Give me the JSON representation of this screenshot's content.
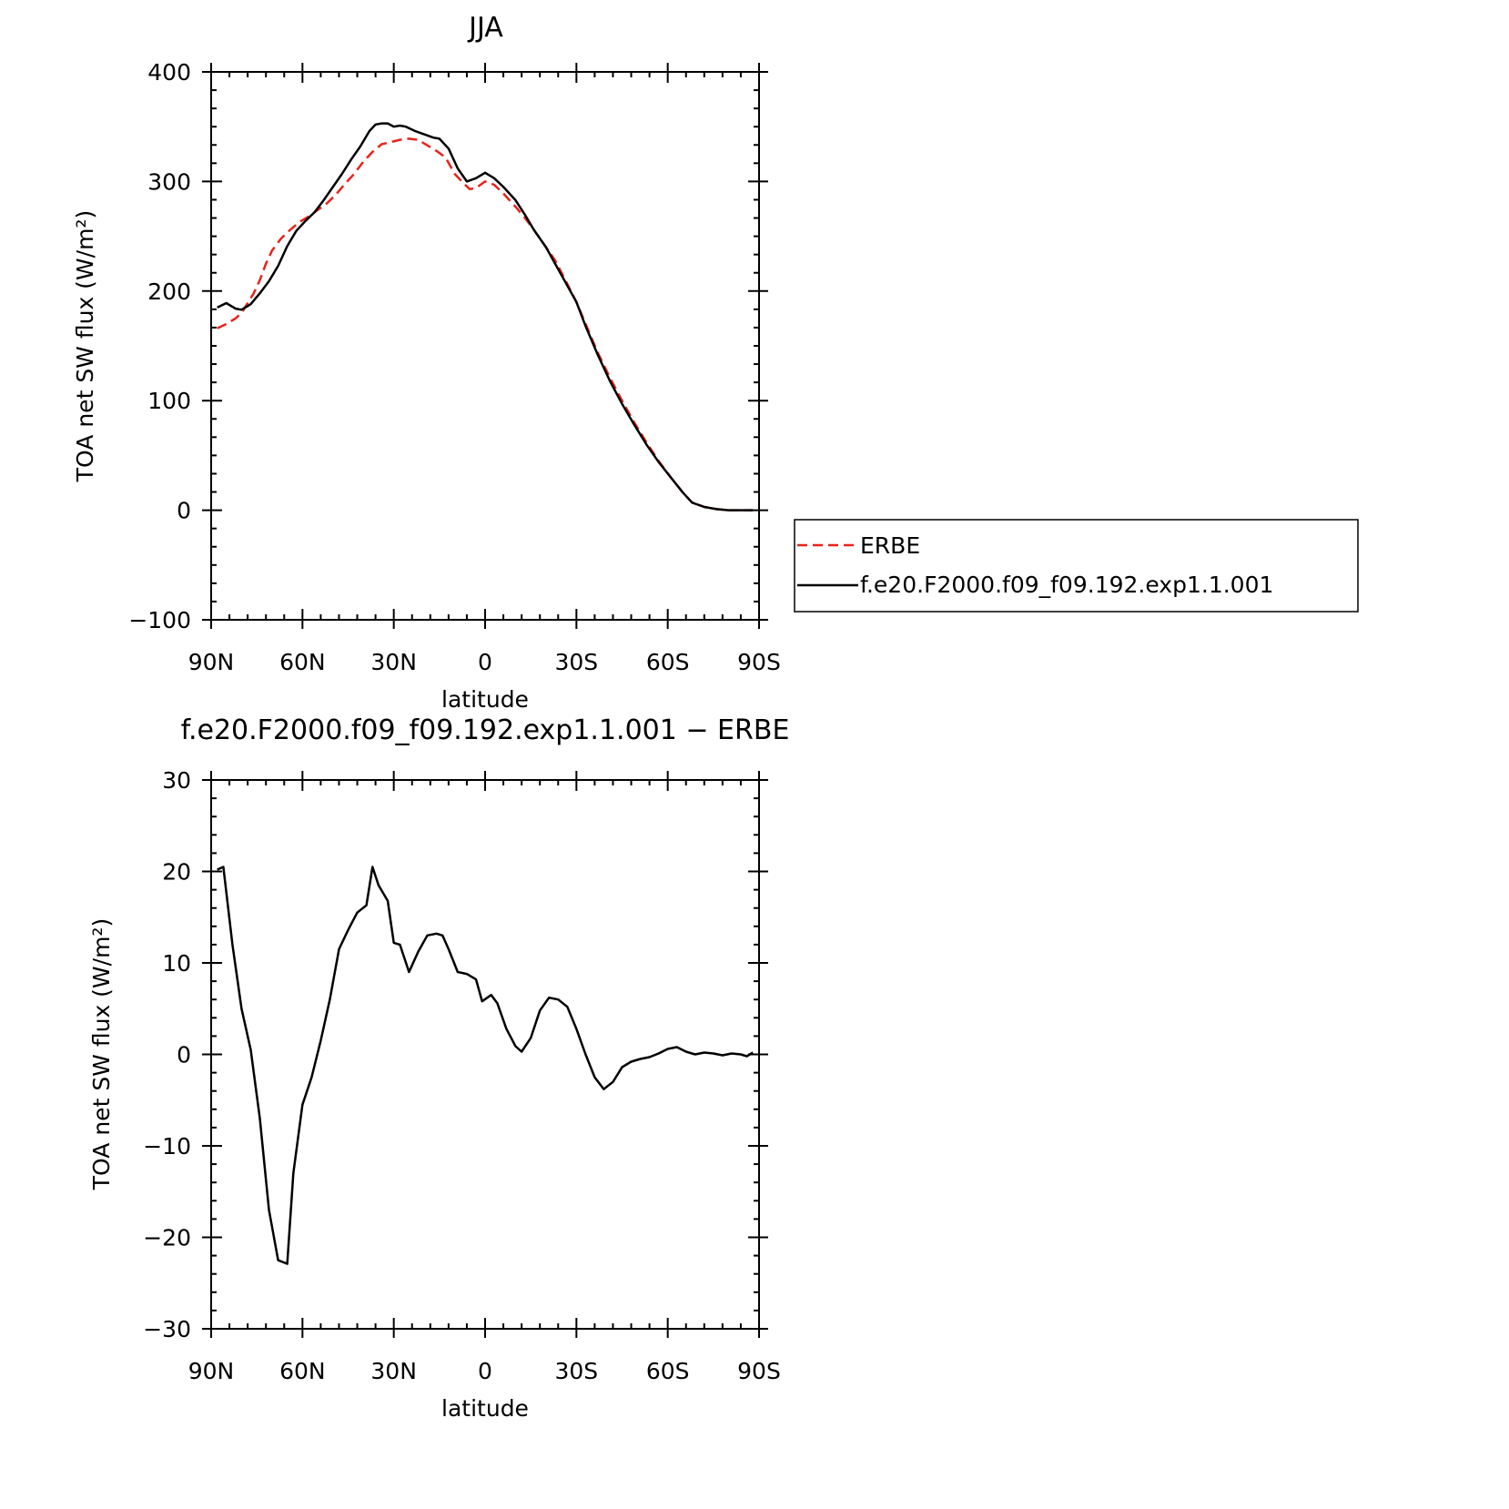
{
  "chart_data": [
    {
      "type": "line",
      "title": "JJA",
      "xlabel": "latitude",
      "ylabel": "TOA net SW flux (W/m²)",
      "xlim": [
        90,
        -90
      ],
      "ylim": [
        -100,
        400
      ],
      "xticks": [
        90,
        60,
        30,
        0,
        -30,
        -60,
        -90
      ],
      "xtick_labels": [
        "90N",
        "60N",
        "30N",
        "0",
        "30S",
        "60S",
        "90S"
      ],
      "yticks": [
        -100,
        0,
        100,
        200,
        300,
        400
      ],
      "ytick_labels": [
        "−100",
        "0",
        "100",
        "200",
        "300",
        "400"
      ],
      "grid": false,
      "legend_position": "right",
      "series": [
        {
          "name": "ERBE",
          "color": "#e8221c",
          "dash": "dashed",
          "points": [
            [
              88,
              166
            ],
            [
              85,
              170
            ],
            [
              82,
              175
            ],
            [
              80,
              180
            ],
            [
              76,
              198
            ],
            [
              74,
              210
            ],
            [
              72,
              225
            ],
            [
              70,
              237
            ],
            [
              67,
              248
            ],
            [
              64,
              256
            ],
            [
              61,
              263
            ],
            [
              58,
              268
            ],
            [
              55,
              274
            ],
            [
              52,
              280
            ],
            [
              49,
              288
            ],
            [
              46,
              298
            ],
            [
              43,
              307
            ],
            [
              40,
              318
            ],
            [
              37,
              327
            ],
            [
              34,
              334
            ],
            [
              31,
              336
            ],
            [
              28,
              338
            ],
            [
              25,
              339
            ],
            [
              22,
              338
            ],
            [
              19,
              333
            ],
            [
              16,
              328
            ],
            [
              13,
              322
            ],
            [
              10,
              307
            ],
            [
              7,
              298
            ],
            [
              5,
              293
            ],
            [
              3,
              294
            ],
            [
              0,
              300
            ],
            [
              -3,
              297
            ],
            [
              -6,
              289
            ],
            [
              -10,
              277
            ],
            [
              -13,
              267
            ],
            [
              -16,
              256
            ],
            [
              -20,
              240
            ],
            [
              -23,
              228
            ],
            [
              -26,
              212
            ],
            [
              -30,
              190
            ],
            [
              -33,
              170
            ],
            [
              -37,
              144
            ],
            [
              -41,
              121
            ],
            [
              -45,
              100
            ],
            [
              -49,
              80
            ],
            [
              -53,
              62
            ],
            [
              -57,
              45
            ],
            [
              -61,
              30
            ],
            [
              -65,
              16
            ],
            [
              -68,
              7
            ],
            [
              -72,
              3
            ],
            [
              -76,
              1
            ],
            [
              -80,
              0
            ],
            [
              -84,
              0
            ],
            [
              -88,
              0
            ]
          ]
        },
        {
          "name": "f.e20.F2000.f09_f09.192.exp1.1.001",
          "color": "#000000",
          "dash": "solid",
          "points": [
            [
              88,
              185
            ],
            [
              85,
              189
            ],
            [
              82,
              184
            ],
            [
              80,
              183
            ],
            [
              77,
              188
            ],
            [
              74,
              198
            ],
            [
              71,
              209
            ],
            [
              68,
              223
            ],
            [
              65,
              241
            ],
            [
              62,
              255
            ],
            [
              59,
              264
            ],
            [
              56,
              272
            ],
            [
              53,
              283
            ],
            [
              50,
              295
            ],
            [
              47,
              307
            ],
            [
              44,
              320
            ],
            [
              41,
              332
            ],
            [
              38,
              346
            ],
            [
              36,
              352
            ],
            [
              34,
              353
            ],
            [
              32,
              353
            ],
            [
              30,
              350
            ],
            [
              28,
              351
            ],
            [
              26,
              350
            ],
            [
              23,
              346
            ],
            [
              20,
              343
            ],
            [
              17,
              340
            ],
            [
              15,
              339
            ],
            [
              12,
              330
            ],
            [
              9,
              312
            ],
            [
              6,
              300
            ],
            [
              3,
              303
            ],
            [
              0,
              308
            ],
            [
              -3,
              303
            ],
            [
              -6,
              295
            ],
            [
              -10,
              283
            ],
            [
              -13,
              270
            ],
            [
              -16,
              256
            ],
            [
              -20,
              240
            ],
            [
              -23,
              225
            ],
            [
              -26,
              210
            ],
            [
              -30,
              190
            ],
            [
              -33,
              168
            ],
            [
              -37,
              142
            ],
            [
              -41,
              118
            ],
            [
              -45,
              97
            ],
            [
              -49,
              78
            ],
            [
              -53,
              60
            ],
            [
              -57,
              44
            ],
            [
              -61,
              30
            ],
            [
              -65,
              16
            ],
            [
              -68,
              7
            ],
            [
              -72,
              3
            ],
            [
              -76,
              1
            ],
            [
              -80,
              0
            ],
            [
              -84,
              0
            ],
            [
              -88,
              0
            ]
          ]
        }
      ]
    },
    {
      "type": "line",
      "title": "f.e20.F2000.f09_f09.192.exp1.1.001 − ERBE",
      "xlabel": "latitude",
      "ylabel": "TOA net SW flux (W/m²)",
      "xlim": [
        90,
        -90
      ],
      "ylim": [
        -30,
        30
      ],
      "xticks": [
        90,
        60,
        30,
        0,
        -30,
        -60,
        -90
      ],
      "xtick_labels": [
        "90N",
        "60N",
        "30N",
        "0",
        "30S",
        "60S",
        "90S"
      ],
      "yticks": [
        -30,
        -20,
        -10,
        0,
        10,
        20,
        30
      ],
      "ytick_labels": [
        "−30",
        "−20",
        "−10",
        "0",
        "10",
        "20",
        "30"
      ],
      "grid": false,
      "series": [
        {
          "color": "#000000",
          "dash": "solid",
          "points": [
            [
              88,
              20.2
            ],
            [
              86,
              20.5
            ],
            [
              83,
              12
            ],
            [
              80,
              5
            ],
            [
              77,
              0.5
            ],
            [
              74,
              -7
            ],
            [
              71,
              -17
            ],
            [
              68,
              -22.5
            ],
            [
              65,
              -22.9
            ],
            [
              63,
              -13
            ],
            [
              60,
              -5.5
            ],
            [
              57,
              -2.5
            ],
            [
              54,
              1.5
            ],
            [
              51,
              6
            ],
            [
              48,
              11.5
            ],
            [
              45,
              13.6
            ],
            [
              42,
              15.5
            ],
            [
              39,
              16.3
            ],
            [
              37,
              20.5
            ],
            [
              35,
              18.5
            ],
            [
              32,
              16.8
            ],
            [
              30,
              12.2
            ],
            [
              28,
              12
            ],
            [
              25,
              9
            ],
            [
              22,
              11.2
            ],
            [
              19,
              13
            ],
            [
              16,
              13.2
            ],
            [
              14,
              13
            ],
            [
              12,
              11.5
            ],
            [
              9,
              9
            ],
            [
              6,
              8.8
            ],
            [
              3,
              8.2
            ],
            [
              1,
              5.8
            ],
            [
              -2,
              6.5
            ],
            [
              -4,
              5.6
            ],
            [
              -7,
              2.8
            ],
            [
              -10,
              0.9
            ],
            [
              -12,
              0.3
            ],
            [
              -15,
              1.8
            ],
            [
              -18,
              4.8
            ],
            [
              -21,
              6.2
            ],
            [
              -24,
              6
            ],
            [
              -27,
              5.2
            ],
            [
              -30,
              2.8
            ],
            [
              -33,
              0
            ],
            [
              -36,
              -2.5
            ],
            [
              -39,
              -3.8
            ],
            [
              -42,
              -3
            ],
            [
              -45,
              -1.4
            ],
            [
              -48,
              -0.8
            ],
            [
              -51,
              -0.5
            ],
            [
              -54,
              -0.3
            ],
            [
              -57,
              0.1
            ],
            [
              -60,
              0.6
            ],
            [
              -63,
              0.8
            ],
            [
              -66,
              0.3
            ],
            [
              -69,
              0
            ],
            [
              -72,
              0.2
            ],
            [
              -75,
              0.1
            ],
            [
              -78,
              -0.1
            ],
            [
              -81,
              0.1
            ],
            [
              -84,
              0
            ],
            [
              -86,
              -0.2
            ],
            [
              -88,
              0.2
            ]
          ]
        }
      ]
    }
  ],
  "legend": {
    "items": [
      {
        "label": "ERBE",
        "color": "#e8221c",
        "dash": "dashed"
      },
      {
        "label": "f.e20.F2000.f09_f09.192.exp1.1.001",
        "color": "#000000",
        "dash": "solid"
      }
    ]
  }
}
